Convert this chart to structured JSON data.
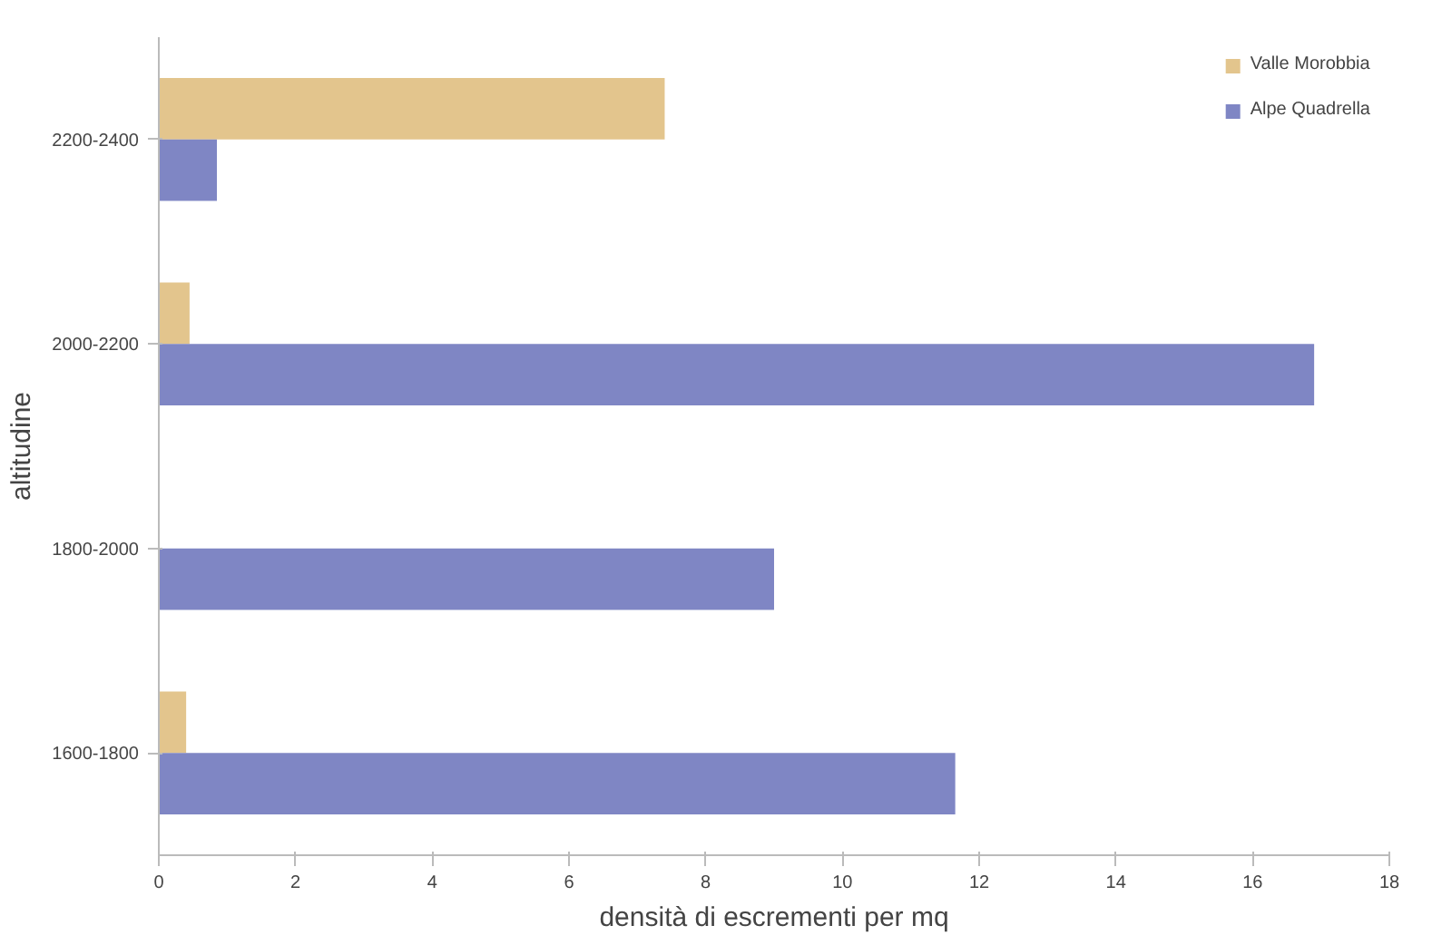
{
  "chart_data": {
    "type": "bar",
    "orientation": "horizontal",
    "xlabel": "densità di escrementi per mq",
    "ylabel": "altitudine",
    "categories": [
      "2200-2400",
      "2000-2200",
      "1800-2000",
      "1600-1800"
    ],
    "series": [
      {
        "name": "Valle Morobbia",
        "color": "#e3c58d",
        "values": [
          7.4,
          0.45,
          0,
          0.4
        ]
      },
      {
        "name": "Alpe Quadrella",
        "color": "#7f86c4",
        "values": [
          0.85,
          16.9,
          9.0,
          11.65
        ]
      }
    ],
    "xlim": [
      0,
      18
    ],
    "xticks": [
      0,
      2,
      4,
      6,
      8,
      10,
      12,
      14,
      16,
      18
    ],
    "grid": false,
    "legend": "top right"
  }
}
